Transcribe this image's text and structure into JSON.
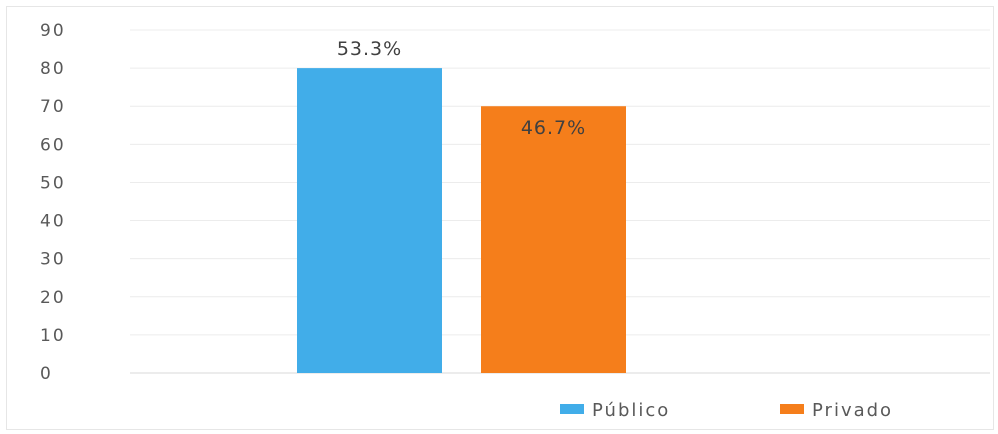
{
  "chart_data": {
    "type": "bar",
    "categories": [
      "Público",
      "Privado"
    ],
    "values": [
      80,
      70
    ],
    "data_labels": [
      "53.3%",
      "46.7%"
    ],
    "colors": [
      "#41ade9",
      "#f57e1b"
    ],
    "ylim": [
      0,
      90
    ],
    "yticks": [
      "0",
      "10",
      "20",
      "30",
      "40",
      "50",
      "60",
      "70",
      "80",
      "90"
    ],
    "grid": true,
    "legend_position": "bottom-right",
    "legend": [
      {
        "label": "Público",
        "color": "#41ade9"
      },
      {
        "label": "Privado",
        "color": "#f57e1b"
      }
    ]
  }
}
